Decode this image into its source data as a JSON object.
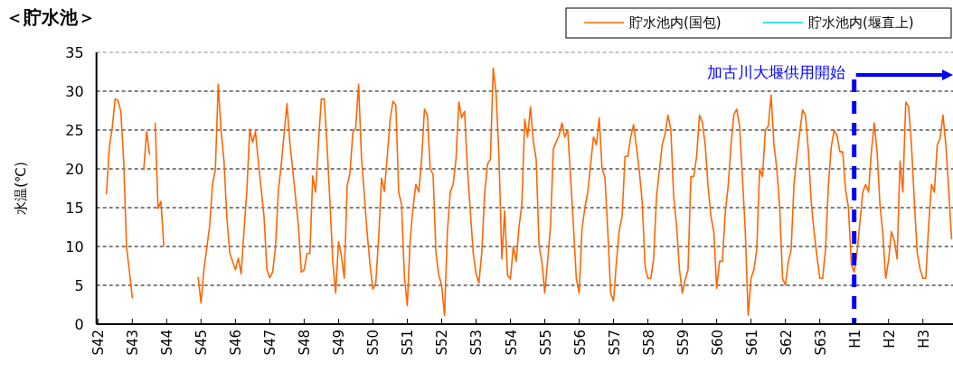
{
  "chart_data": {
    "type": "line",
    "title": "＜貯水池＞",
    "ylabel": "水温(℃)",
    "categories": [
      "S42",
      null,
      null,
      null,
      null,
      null,
      null,
      null,
      null,
      null,
      null,
      null,
      "S43",
      null,
      null,
      null,
      null,
      null,
      null,
      null,
      null,
      null,
      null,
      null,
      "S44",
      null,
      null,
      null,
      null,
      null,
      null,
      null,
      null,
      null,
      null,
      null,
      "S45",
      null,
      null,
      null,
      null,
      null,
      null,
      null,
      null,
      null,
      null,
      null,
      "S46",
      null,
      null,
      null,
      null,
      null,
      null,
      null,
      null,
      null,
      null,
      null,
      "S47",
      null,
      null,
      null,
      null,
      null,
      null,
      null,
      null,
      null,
      null,
      null,
      "S48",
      null,
      null,
      null,
      null,
      null,
      null,
      null,
      null,
      null,
      null,
      null,
      "S49",
      null,
      null,
      null,
      null,
      null,
      null,
      null,
      null,
      null,
      null,
      null,
      "S50",
      null,
      null,
      null,
      null,
      null,
      null,
      null,
      null,
      null,
      null,
      null,
      "S51",
      null,
      null,
      null,
      null,
      null,
      null,
      null,
      null,
      null,
      null,
      null,
      "S52",
      null,
      null,
      null,
      null,
      null,
      null,
      null,
      null,
      null,
      null,
      null,
      "S53",
      null,
      null,
      null,
      null,
      null,
      null,
      null,
      null,
      null,
      null,
      null,
      "S54",
      null,
      null,
      null,
      null,
      null,
      null,
      null,
      null,
      null,
      null,
      null,
      "S55",
      null,
      null,
      null,
      null,
      null,
      null,
      null,
      null,
      null,
      null,
      null,
      "S56",
      null,
      null,
      null,
      null,
      null,
      null,
      null,
      null,
      null,
      null,
      null,
      "S57",
      null,
      null,
      null,
      null,
      null,
      null,
      null,
      null,
      null,
      null,
      null,
      "S58",
      null,
      null,
      null,
      null,
      null,
      null,
      null,
      null,
      null,
      null,
      null,
      "S59",
      null,
      null,
      null,
      null,
      null,
      null,
      null,
      null,
      null,
      null,
      null,
      "S60",
      null,
      null,
      null,
      null,
      null,
      null,
      null,
      null,
      null,
      null,
      null,
      "S61",
      null,
      null,
      null,
      null,
      null,
      null,
      null,
      null,
      null,
      null,
      null,
      "S62",
      null,
      null,
      null,
      null,
      null,
      null,
      null,
      null,
      null,
      null,
      null,
      "S63",
      null,
      null,
      null,
      null,
      null,
      null,
      null,
      null,
      null,
      null,
      null,
      "H1",
      null,
      null,
      null,
      null,
      null,
      null,
      null,
      null,
      null,
      null,
      null,
      "H2",
      null,
      null,
      null,
      null,
      null,
      null,
      null,
      null,
      null,
      null,
      null,
      "H3",
      null,
      null,
      null,
      null,
      null,
      null,
      null,
      null,
      null,
      null
    ],
    "ylim": [
      0,
      35
    ],
    "yticks": [
      0,
      5,
      10,
      15,
      20,
      25,
      30,
      35
    ],
    "grid": "y",
    "legend": "top right",
    "line_style": "solid",
    "ref_lines": [
      {
        "axis": "x",
        "value": "H1",
        "label": "加古川大堰供用開始",
        "color": "#0000ff",
        "line_style": "dashed"
      }
    ],
    "series": [
      {
        "name": "貯水池内(国包)",
        "color": "#ff6600",
        "values": [
          null,
          null,
          null,
          16.8,
          22.8,
          25.3,
          29,
          28.8,
          27.4,
          21,
          9.9,
          6.8,
          3.4,
          null,
          null,
          null,
          19.9,
          24.8,
          21.9,
          null,
          25.9,
          14.9,
          15.8,
          10.1,
          null,
          null,
          null,
          null,
          null,
          null,
          null,
          null,
          null,
          null,
          null,
          6,
          2.7,
          7,
          9.8,
          12.6,
          18,
          19.9,
          30.9,
          24.9,
          21.1,
          13.8,
          9.2,
          8.1,
          7,
          8.5,
          6.5,
          12,
          17.2,
          25.1,
          23.4,
          24.8,
          20.9,
          17.4,
          13.8,
          7,
          6,
          6.7,
          9.9,
          17.2,
          20.5,
          24.5,
          28.4,
          23.4,
          19.9,
          16.3,
          12.6,
          6.7,
          7,
          9.1,
          9.1,
          19.1,
          17,
          23.4,
          29,
          29,
          23,
          15.7,
          8,
          4,
          10.6,
          8.8,
          5.9,
          17.8,
          19.5,
          24.7,
          25.3,
          30.9,
          21.5,
          16.6,
          11.7,
          7.6,
          4.5,
          5.3,
          11.1,
          18.8,
          17.1,
          21.6,
          26.3,
          28.7,
          28.2,
          17,
          15.4,
          6.1,
          2.4,
          10.8,
          15,
          18,
          17,
          21.2,
          27.7,
          26.9,
          20,
          19.3,
          9.2,
          6.3,
          5,
          1.1,
          11.9,
          17,
          18,
          21.2,
          28.6,
          26.6,
          27.4,
          20,
          14.6,
          9.2,
          6.5,
          5.3,
          9.2,
          16.8,
          20.6,
          21.2,
          33,
          29.7,
          21.6,
          8.4,
          14.6,
          6.3,
          5.8,
          10,
          8.1,
          12.5,
          15.4,
          26.4,
          24.1,
          28,
          23.5,
          21.2,
          10.1,
          8,
          4,
          8.2,
          12.7,
          22.6,
          23.5,
          24.3,
          25.9,
          24.1,
          25,
          18.9,
          12.7,
          5.9,
          4,
          12.3,
          15,
          17,
          20.6,
          24.1,
          23.1,
          26.6,
          20,
          18.9,
          11.9,
          4,
          3,
          8,
          12.1,
          13.9,
          21.6,
          21.6,
          24.1,
          25.7,
          22.8,
          19.7,
          15.8,
          7.5,
          5.9,
          5.9,
          8.4,
          16.4,
          19.8,
          23.1,
          24.5,
          26.9,
          25.1,
          16.4,
          12.7,
          7.1,
          4,
          5.7,
          7,
          19,
          19,
          21.6,
          26.9,
          26,
          23.1,
          17.7,
          13.9,
          11.9,
          4.6,
          8.1,
          8.1,
          14.4,
          17.7,
          23.1,
          27,
          27.7,
          25.5,
          18.9,
          11.9,
          1.1,
          5.9,
          7,
          9.6,
          20,
          19,
          25,
          25.5,
          29.5,
          23.1,
          20,
          15,
          5.9,
          5,
          8,
          9.6,
          18.1,
          21.6,
          24.7,
          27.6,
          26.9,
          22.4,
          15.8,
          11.9,
          8.8,
          5.9,
          5.9,
          9.6,
          17.9,
          22.8,
          25,
          24.3,
          22.2,
          22.2,
          17.3,
          15,
          7.7,
          6.7,
          9.2,
          13.1,
          17,
          18,
          17,
          22.2,
          25.9,
          22.2,
          15.4,
          11.7,
          5.9,
          8.2,
          11.9,
          10.8,
          8.4,
          21,
          17,
          28.6,
          28,
          23.1,
          15.8,
          9.2,
          7.1,
          5.9,
          5.9,
          12.7,
          18,
          17,
          23.1,
          23.9,
          26.9,
          23.1,
          17.3,
          11
        ]
      },
      {
        "name": "貯水池内(堰直上)",
        "color": "#00ccff",
        "values": [
          null,
          null,
          null,
          null,
          null,
          null,
          null,
          null,
          null,
          null,
          null,
          null,
          null,
          null,
          null,
          null,
          null,
          null,
          null,
          null,
          null,
          null,
          null,
          null,
          null,
          null,
          null,
          null,
          null,
          null,
          null,
          null,
          null,
          null,
          null,
          null,
          null,
          null,
          null,
          null,
          null,
          null,
          null,
          null,
          null,
          null,
          null,
          null,
          null,
          null,
          null,
          null,
          null,
          null,
          null,
          null,
          null,
          null,
          null,
          null,
          null,
          null,
          null,
          null,
          null,
          null,
          null,
          null,
          null,
          null,
          null,
          null,
          null,
          null,
          null,
          null,
          null,
          null,
          null,
          null,
          null,
          null,
          null,
          null,
          null,
          null,
          null,
          null,
          null,
          null,
          null,
          null,
          null,
          null,
          null,
          null,
          null,
          null,
          null,
          null,
          null,
          null,
          null,
          null,
          null,
          null,
          null,
          null,
          null,
          null,
          null,
          null,
          null,
          null,
          null,
          null,
          null,
          null,
          null,
          null,
          null,
          null,
          null,
          null,
          null,
          null,
          null,
          null,
          null,
          null,
          null,
          null,
          null,
          null,
          null,
          null,
          null,
          null,
          null,
          null,
          null,
          null,
          null,
          null,
          null,
          null,
          null,
          null,
          null,
          null,
          null,
          null,
          null,
          null,
          null,
          null,
          null,
          null,
          null,
          null,
          null,
          null,
          null,
          null,
          null,
          null,
          null,
          null,
          null,
          null,
          null,
          null,
          null,
          null,
          null,
          null,
          null,
          null,
          null,
          null,
          null,
          null,
          null,
          null,
          null,
          null,
          null,
          null,
          null,
          null,
          null,
          null,
          null,
          null,
          null,
          null,
          null,
          null,
          null,
          null,
          null,
          null,
          null,
          null,
          null,
          null,
          null,
          null,
          null,
          null,
          null,
          null,
          null,
          null,
          null,
          null,
          null,
          null,
          null,
          null,
          null,
          null,
          null,
          null,
          null,
          null,
          null,
          null,
          null,
          null,
          null,
          null,
          null,
          null,
          null,
          null,
          null,
          null,
          null,
          null,
          null,
          null,
          null,
          null,
          null,
          null,
          null,
          null,
          null,
          null,
          null,
          null,
          null,
          null,
          null,
          null,
          null,
          null,
          null,
          null,
          null,
          null,
          null,
          null,
          null,
          null,
          null,
          null,
          null,
          null,
          null,
          null,
          null,
          null,
          null,
          null,
          null,
          null,
          null,
          null,
          null,
          null,
          null,
          null,
          null,
          null,
          null,
          null,
          null,
          null,
          null,
          null,
          null,
          null,
          null,
          null,
          null,
          null,
          null
        ]
      }
    ]
  }
}
